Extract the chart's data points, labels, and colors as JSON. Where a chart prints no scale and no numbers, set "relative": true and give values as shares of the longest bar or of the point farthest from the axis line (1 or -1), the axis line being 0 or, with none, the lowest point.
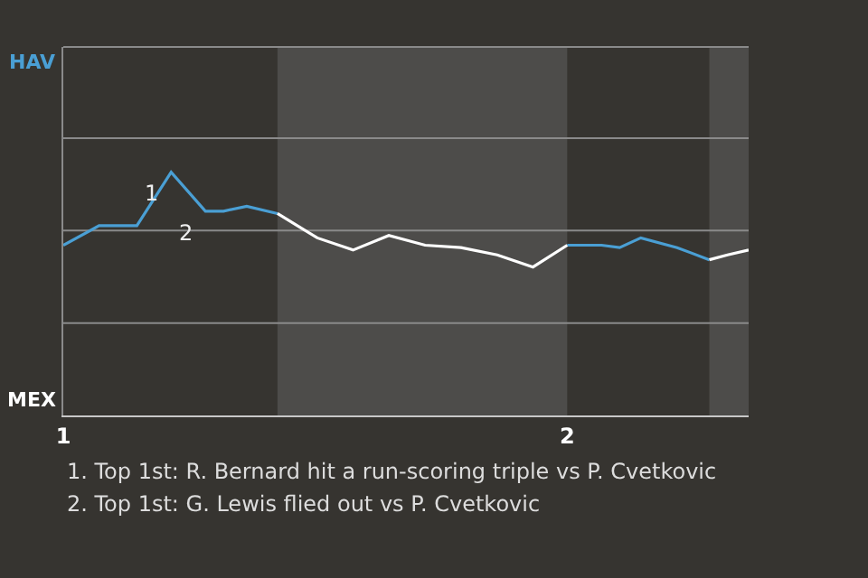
{
  "chart_data": {
    "type": "line",
    "relative": true,
    "xlim": [
      1,
      2.36
    ],
    "xticks": [
      1,
      2
    ],
    "ref_lines": [
      {
        "axis": "y",
        "value": 1.14,
        "color": "#8a8a8a"
      },
      {
        "axis": "y",
        "value": 0.76,
        "color": "#8a8a8a"
      },
      {
        "axis": "y",
        "value": 0.38,
        "color": "#8a8a8a"
      }
    ],
    "marker": "none",
    "line_style": "solid",
    "series": [
      {
        "color": "#4a9fd4",
        "x": [
          1,
          1.071,
          1.146,
          1.214,
          1.282,
          1.318,
          1.364,
          1.425,
          null,
          2,
          2.068,
          2.104,
          2.146,
          2.218,
          2.282
        ],
        "values": [
          0.7,
          0.78,
          0.78,
          1,
          0.84,
          0.84,
          0.86,
          0.83,
          null,
          0.7,
          0.7,
          0.69,
          0.73,
          0.69,
          0.64
        ]
      },
      {
        "color": "#ffffff",
        "x": [
          1.425,
          1.504,
          1.575,
          1.646,
          1.718,
          1.789,
          1.861,
          1.932,
          2,
          null,
          2.282,
          2.318,
          2.36
        ],
        "values": [
          0.83,
          0.73,
          0.68,
          0.74,
          0.7,
          0.69,
          0.66,
          0.61,
          0.7,
          null,
          0.64,
          0.66,
          0.68
        ]
      }
    ],
    "bands": [
      {
        "axis": "x",
        "from": 1.425,
        "to": 2,
        "color": "#4d4c4a"
      },
      {
        "axis": "x",
        "from": 2.282,
        "to": 2.36,
        "color": "#4d4c4a"
      }
    ],
    "annotations": [
      "HAV",
      "MEX",
      {
        "text": "1",
        "x": 1.214,
        "y": 1
      },
      {
        "text": "2",
        "x": 1.282,
        "y": 0.84
      },
      "1. Top 1st: R. Bernard hit a run-scoring triple vs P. Cvetkovic",
      "2. Top 1st: G. Lewis flied out vs P. Cvetkovic"
    ]
  }
}
